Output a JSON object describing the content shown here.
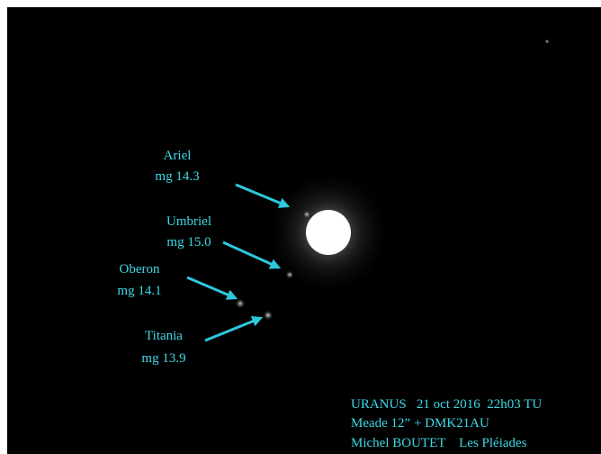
{
  "moons": [
    {
      "name": "Ariel",
      "magnitude": "mg 14.3"
    },
    {
      "name": "Umbriel",
      "magnitude": "mg 15.0"
    },
    {
      "name": "Oberon",
      "magnitude": "mg 14.1"
    },
    {
      "name": "Titania",
      "magnitude": "mg 13.9"
    }
  ],
  "caption": [
    "URANUS   21 oct 2016  22h03 TU",
    "Meade 12” + DMK21AU",
    "Michel BOUTET    Les Pléiades"
  ]
}
